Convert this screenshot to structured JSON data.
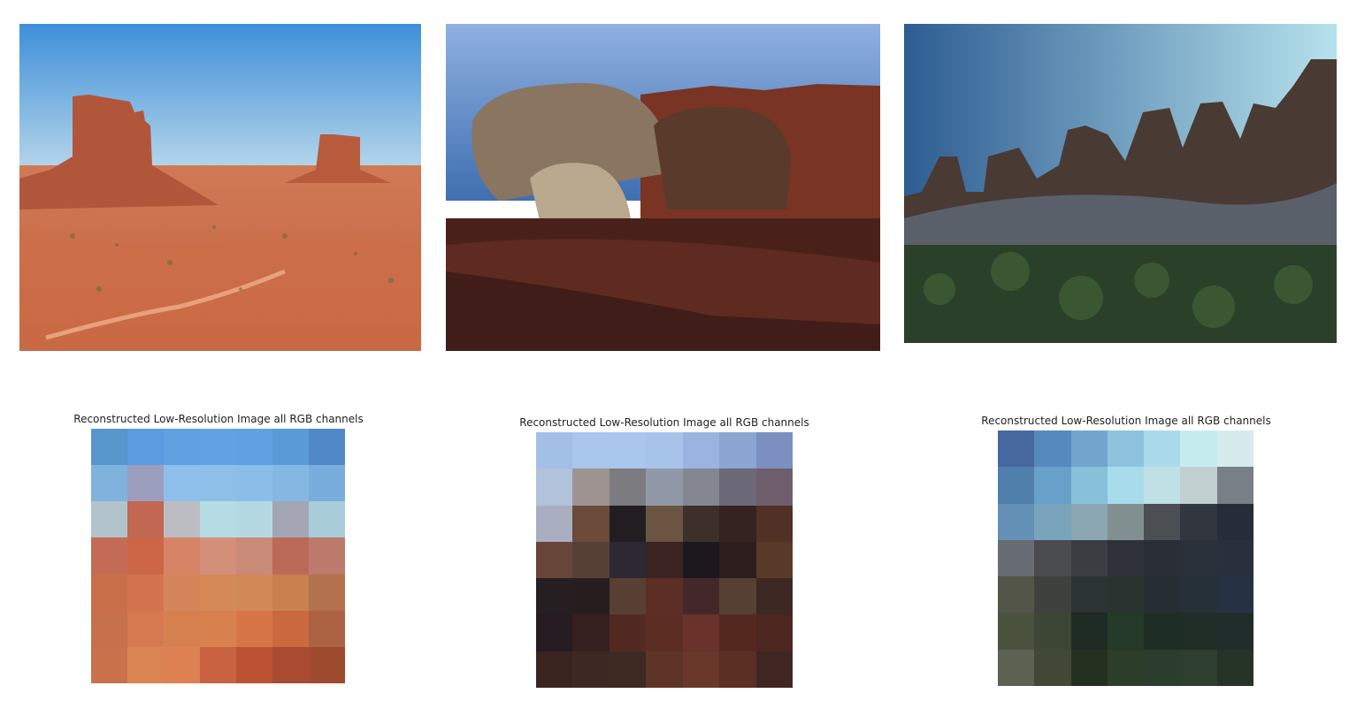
{
  "panels": [
    {
      "photo_name": "monument-valley-buttes-photo",
      "caption": "Reconstructed Low-Resolution Image all RGB channels",
      "grid": [
        [
          "#5795cd",
          "#5c9be0",
          "#5fa1e1",
          "#60a2e2",
          "#5fa1e1",
          "#5a9ad7",
          "#5089c5"
        ],
        [
          "#7fb2dc",
          "#9b9ebf",
          "#8ebfea",
          "#8ebfe9",
          "#8abde8",
          "#84b8e3",
          "#79addd"
        ],
        [
          "#b3c3cc",
          "#c26751",
          "#bcbdc2",
          "#b5dbe4",
          "#b5d9e2",
          "#a3a6b2",
          "#a8ccd8"
        ],
        [
          "#c46b56",
          "#cc6647",
          "#d58466",
          "#d38f7a",
          "#c98a78",
          "#ba6a56",
          "#bd7a6d"
        ],
        [
          "#c96f4a",
          "#d2734e",
          "#d5855a",
          "#d48957",
          "#d18957",
          "#c8814f",
          "#b4714d"
        ],
        [
          "#c6714c",
          "#d57a50",
          "#d6804f",
          "#d8814f",
          "#d87548",
          "#cb6a3f",
          "#ac6343"
        ],
        [
          "#c8714b",
          "#dc8554",
          "#dd8052",
          "#c96240",
          "#bb5234",
          "#a84b31",
          "#9f4b30"
        ]
      ]
    },
    {
      "photo_name": "red-rock-boulders-photo",
      "caption": "Reconstructed Low-Resolution Image all RGB channels",
      "grid": [
        [
          "#a2c0e6",
          "#a9c6ec",
          "#a9c6ed",
          "#a6c4ea",
          "#99b4e0",
          "#8ba6d2",
          "#7b90c0"
        ],
        [
          "#b1c3da",
          "#9e9390",
          "#7c7b80",
          "#9199a8",
          "#848792",
          "#6c6a78",
          "#6e5e6c"
        ],
        [
          "#a9aec0",
          "#6b4a3a",
          "#221d21",
          "#6b5442",
          "#3d302b",
          "#35231f",
          "#513026"
        ],
        [
          "#674539",
          "#564036",
          "#2d2832",
          "#3b2321",
          "#1c181c",
          "#2d1d1c",
          "#583a28"
        ],
        [
          "#251f21",
          "#261d1f",
          "#573f33",
          "#5c2e25",
          "#42282a",
          "#554032",
          "#3d2823"
        ],
        [
          "#261b20",
          "#35201f",
          "#522a22",
          "#5c2e23",
          "#69322a",
          "#55281f",
          "#4c261f"
        ],
        [
          "#3a2420",
          "#3d2923",
          "#3c2a23",
          "#5d3426",
          "#69382b",
          "#5a3024",
          "#3f2622"
        ]
      ]
    },
    {
      "photo_name": "sandstone-spires-shrubs-photo",
      "caption": "Reconstructed Low-Resolution Image all RGB channels",
      "grid": [
        [
          "#46689e",
          "#5689bc",
          "#71a5cc",
          "#8dc3dd",
          "#a9daeb",
          "#c6ecf0",
          "#d6ecec"
        ],
        [
          "#507fab",
          "#67a0c8",
          "#88c0da",
          "#a8dcea",
          "#bfe0e5",
          "#c2cfd1",
          "#797f87"
        ],
        [
          "#6590b5",
          "#7aa4bb",
          "#8aa6b2",
          "#818f90",
          "#4b4e52",
          "#31363f",
          "#262d38"
        ],
        [
          "#686c73",
          "#4a4c50",
          "#3c3d42",
          "#2e3138",
          "#2a2f37",
          "#2b313b",
          "#27303b"
        ],
        [
          "#535549",
          "#3e413d",
          "#2b3432",
          "#293430",
          "#252e33",
          "#253038",
          "#263244"
        ],
        [
          "#4a523e",
          "#3d4634",
          "#1e2b24",
          "#253a28",
          "#1f2e24",
          "#212e28",
          "#202d2a"
        ],
        [
          "#5c6151",
          "#414835",
          "#24301f",
          "#2c3e2a",
          "#2b3d2d",
          "#2e3e2f",
          "#253426"
        ]
      ]
    }
  ]
}
